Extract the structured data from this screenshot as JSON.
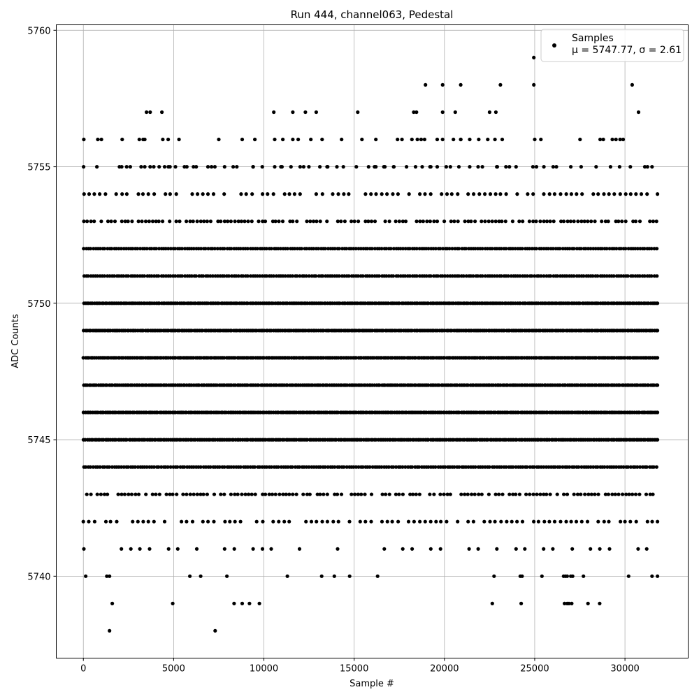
{
  "chart_data": {
    "type": "scatter",
    "title": "Run 444, channel063, Pedestal",
    "xlabel": "Sample #",
    "ylabel": "ADC Counts",
    "xlim": [
      -1500,
      33500
    ],
    "ylim": [
      5737,
      5760.2
    ],
    "x_ticks": [
      0,
      5000,
      10000,
      15000,
      20000,
      25000,
      30000
    ],
    "y_ticks": [
      5740,
      5745,
      5750,
      5755,
      5760
    ],
    "grid": true,
    "legend": {
      "position": "top-right",
      "series_label": "Samples",
      "stats_label": "μ = 5747.77, σ = 2.61"
    },
    "marker_color": "#000000",
    "sample_count": 31800,
    "dense_rows": [
      5741,
      5742,
      5743,
      5744,
      5745,
      5746,
      5747,
      5748,
      5749,
      5750,
      5751,
      5752,
      5753,
      5754,
      5755,
      5756
    ],
    "series": [
      {
        "name": "Samples",
        "points": [
          [
            130,
            5740
          ],
          [
            1300,
            5740
          ],
          [
            1450,
            5740
          ],
          [
            5900,
            5740
          ],
          [
            6500,
            5740
          ],
          [
            7950,
            5740
          ],
          [
            11300,
            5740
          ],
          [
            13200,
            5740
          ],
          [
            13900,
            5740
          ],
          [
            14750,
            5740
          ],
          [
            16300,
            5740
          ],
          [
            22750,
            5740
          ],
          [
            24200,
            5740
          ],
          [
            24300,
            5740
          ],
          [
            25400,
            5740
          ],
          [
            26600,
            5740
          ],
          [
            26700,
            5740
          ],
          [
            26800,
            5740
          ],
          [
            27000,
            5740
          ],
          [
            27100,
            5740
          ],
          [
            27700,
            5740
          ],
          [
            30200,
            5740
          ],
          [
            31500,
            5740
          ],
          [
            31800,
            5740
          ],
          [
            1600,
            5739
          ],
          [
            4950,
            5739
          ],
          [
            8350,
            5739
          ],
          [
            8800,
            5739
          ],
          [
            9200,
            5739
          ],
          [
            9750,
            5739
          ],
          [
            22650,
            5739
          ],
          [
            24250,
            5739
          ],
          [
            26650,
            5739
          ],
          [
            26800,
            5739
          ],
          [
            26900,
            5739
          ],
          [
            27050,
            5739
          ],
          [
            27950,
            5739
          ],
          [
            28600,
            5739
          ],
          [
            1450,
            5738
          ],
          [
            7300,
            5738
          ],
          [
            750,
            5755
          ],
          [
            2000,
            5755
          ],
          [
            2400,
            5755
          ],
          [
            2600,
            5755
          ],
          [
            3200,
            5755
          ],
          [
            3400,
            5755
          ],
          [
            3700,
            5755
          ],
          [
            3900,
            5755
          ],
          [
            4200,
            5755
          ],
          [
            4500,
            5755
          ],
          [
            4800,
            5755
          ],
          [
            5100,
            5755
          ],
          [
            5600,
            5755
          ],
          [
            6100,
            5755
          ],
          [
            6900,
            5755
          ],
          [
            7100,
            5755
          ],
          [
            8300,
            5755
          ],
          [
            8500,
            5755
          ],
          [
            9400,
            5755
          ],
          [
            10600,
            5755
          ],
          [
            11000,
            5755
          ],
          [
            11500,
            5755
          ],
          [
            12200,
            5755
          ],
          [
            13100,
            5755
          ],
          [
            13500,
            5755
          ],
          [
            14400,
            5755
          ],
          [
            15800,
            5755
          ],
          [
            16200,
            5755
          ],
          [
            16700,
            5755
          ],
          [
            17200,
            5755
          ],
          [
            17900,
            5755
          ],
          [
            18400,
            5755
          ],
          [
            19200,
            5755
          ],
          [
            19600,
            5755
          ],
          [
            20100,
            5755
          ],
          [
            20800,
            5755
          ],
          [
            21400,
            5755
          ],
          [
            22100,
            5755
          ],
          [
            22900,
            5755
          ],
          [
            23600,
            5755
          ],
          [
            24900,
            5755
          ],
          [
            25100,
            5755
          ],
          [
            26200,
            5755
          ],
          [
            27000,
            5755
          ],
          [
            28400,
            5755
          ],
          [
            29200,
            5755
          ],
          [
            29700,
            5755
          ],
          [
            30300,
            5755
          ],
          [
            31100,
            5755
          ],
          [
            31500,
            5755
          ],
          [
            800,
            5756
          ],
          [
            1000,
            5756
          ],
          [
            2150,
            5756
          ],
          [
            3100,
            5756
          ],
          [
            3400,
            5756
          ],
          [
            4400,
            5756
          ],
          [
            4700,
            5756
          ],
          [
            5300,
            5756
          ],
          [
            7500,
            5756
          ],
          [
            8800,
            5756
          ],
          [
            9500,
            5756
          ],
          [
            10600,
            5756
          ],
          [
            11600,
            5756
          ],
          [
            11900,
            5756
          ],
          [
            12600,
            5756
          ],
          [
            16200,
            5756
          ],
          [
            17400,
            5756
          ],
          [
            18200,
            5756
          ],
          [
            18500,
            5756
          ],
          [
            18900,
            5756
          ],
          [
            19600,
            5756
          ],
          [
            19900,
            5756
          ],
          [
            20500,
            5756
          ],
          [
            20900,
            5756
          ],
          [
            21400,
            5756
          ],
          [
            21900,
            5756
          ],
          [
            22400,
            5756
          ],
          [
            22800,
            5756
          ],
          [
            23200,
            5756
          ],
          [
            25000,
            5756
          ],
          [
            28800,
            5756
          ],
          [
            29300,
            5756
          ],
          [
            29500,
            5756
          ],
          [
            29900,
            5756
          ],
          [
            3500,
            5757
          ],
          [
            3700,
            5757
          ],
          [
            4350,
            5757
          ],
          [
            10550,
            5757
          ],
          [
            11600,
            5757
          ],
          [
            12300,
            5757
          ],
          [
            12900,
            5757
          ],
          [
            15200,
            5757
          ],
          [
            18300,
            5757
          ],
          [
            18450,
            5757
          ],
          [
            19900,
            5757
          ],
          [
            20600,
            5757
          ],
          [
            22500,
            5757
          ],
          [
            22850,
            5757
          ],
          [
            30750,
            5757
          ],
          [
            18950,
            5758
          ],
          [
            19900,
            5758
          ],
          [
            20900,
            5758
          ],
          [
            23100,
            5758
          ],
          [
            24950,
            5758
          ],
          [
            30400,
            5758
          ],
          [
            24950,
            5759
          ]
        ]
      }
    ]
  }
}
